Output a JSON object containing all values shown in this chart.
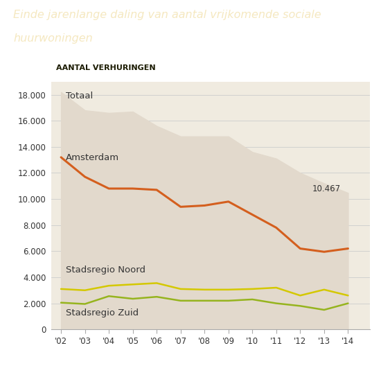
{
  "title_line1": "Einde jarenlange daling van aantal vrijkomende sociale",
  "title_line2": "huurwoningen",
  "subtitle": "AANTAL VERHURINGEN",
  "title_bg_color": "#c07010",
  "subtitle_bg_color": "#e8dfa8",
  "fig_bg_color": "#ffffff",
  "chart_bg": "#f0ebe0",
  "years": [
    2002,
    2003,
    2004,
    2005,
    2006,
    2007,
    2008,
    2009,
    2010,
    2011,
    2012,
    2013,
    2014
  ],
  "year_labels": [
    "'02",
    "'03",
    "'04",
    "'05",
    "'06",
    "'07",
    "'08",
    "'09",
    "'10",
    "'11",
    "'12",
    "'13",
    "'14"
  ],
  "totaal": [
    18200,
    16800,
    16600,
    16700,
    15600,
    14800,
    14800,
    14800,
    13600,
    13100,
    12000,
    11200,
    10467
  ],
  "amsterdam": [
    13200,
    11700,
    10800,
    10800,
    10700,
    9400,
    9500,
    9800,
    8800,
    7800,
    6200,
    5950,
    6200
  ],
  "noord": [
    3100,
    3000,
    3350,
    3450,
    3550,
    3100,
    3050,
    3050,
    3100,
    3200,
    2600,
    3050,
    2600
  ],
  "zuid": [
    2050,
    1950,
    2550,
    2350,
    2500,
    2200,
    2200,
    2200,
    2300,
    2000,
    1800,
    1500,
    2000
  ],
  "totaal_color": "#e2d9cc",
  "amsterdam_color": "#d45f1e",
  "noord_color": "#d4c800",
  "zuid_color": "#96b41e",
  "annotation_value": "10.467",
  "ylim": [
    0,
    19000
  ],
  "yticks": [
    0,
    2000,
    4000,
    6000,
    8000,
    10000,
    12000,
    14000,
    16000,
    18000
  ],
  "ytick_labels": [
    "0",
    "2.000",
    "4.000",
    "6.000",
    "8.000",
    "10.000",
    "12.000",
    "14.000",
    "16.000",
    "18.000"
  ],
  "grid_color": "#cccccc",
  "tick_color": "#333333",
  "label_color": "#333333"
}
